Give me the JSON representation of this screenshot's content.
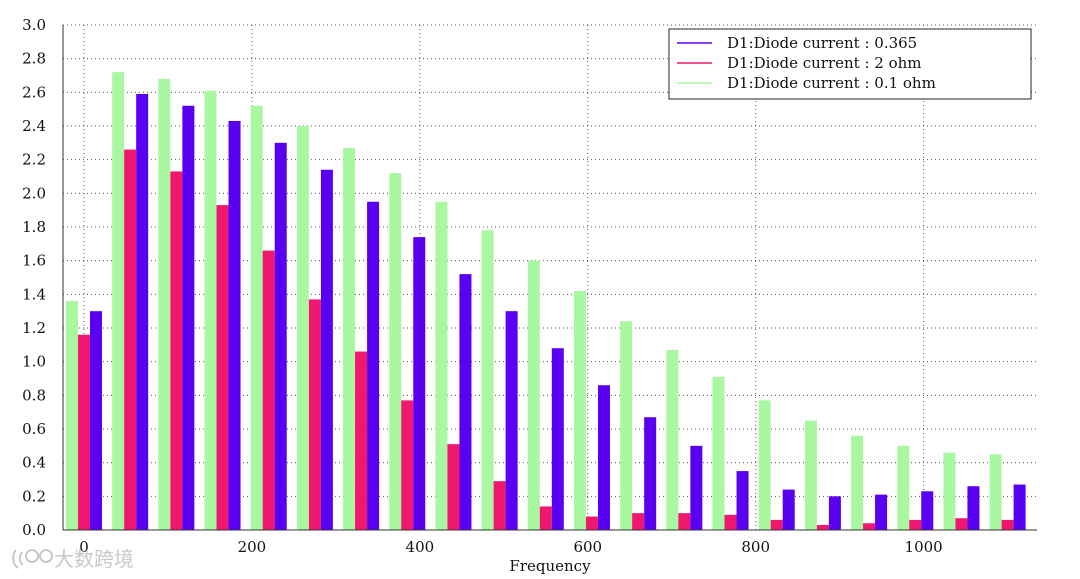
{
  "chart_data": {
    "type": "bar",
    "title": "",
    "xlabel": "Frequency",
    "ylabel": "",
    "xlim": [
      -25,
      1135
    ],
    "ylim": [
      0,
      3.0
    ],
    "x_ticks": [
      "0",
      "200",
      "400",
      "600",
      "800",
      "1000"
    ],
    "y_ticks": [
      "0.0",
      "0.2",
      "0.4",
      "0.6",
      "0.8",
      "1.0",
      "1.2",
      "1.4",
      "1.6",
      "1.8",
      "2.0",
      "2.2",
      "2.4",
      "2.6",
      "2.8",
      "3.0"
    ],
    "grid": true,
    "legend_position": "top-right",
    "x": [
      0,
      55,
      110,
      165,
      220,
      275,
      330,
      385,
      440,
      495,
      550,
      605,
      660,
      715,
      770,
      825,
      880,
      935,
      990,
      1045,
      1100
    ],
    "series": [
      {
        "name": "D1:Diode current : 0.1 ohm",
        "color": "#aaf7a2",
        "values": [
          1.36,
          2.72,
          2.68,
          2.61,
          2.52,
          2.4,
          2.27,
          2.12,
          1.95,
          1.78,
          1.6,
          1.42,
          1.24,
          1.07,
          0.91,
          0.77,
          0.65,
          0.56,
          0.5,
          0.46,
          0.45
        ]
      },
      {
        "name": "D1:Diode current : 2 ohm",
        "color": "#f0176e",
        "values": [
          1.16,
          2.26,
          2.13,
          1.93,
          1.66,
          1.37,
          1.06,
          0.77,
          0.51,
          0.29,
          0.14,
          0.08,
          0.1,
          0.1,
          0.09,
          0.06,
          0.03,
          0.04,
          0.06,
          0.07,
          0.06
        ]
      },
      {
        "name": "D1:Diode current : 0.365",
        "color": "#5a00f2",
        "values": [
          1.3,
          2.59,
          2.52,
          2.43,
          2.3,
          2.14,
          1.95,
          1.74,
          1.52,
          1.3,
          1.08,
          0.86,
          0.67,
          0.5,
          0.35,
          0.24,
          0.2,
          0.21,
          0.23,
          0.26,
          0.27
        ]
      }
    ],
    "legend_order": [
      "D1:Diode current : 0.365",
      "D1:Diode current : 2 ohm",
      "D1:Diode current : 0.1 ohm"
    ]
  },
  "watermark": {
    "text": "大数跨境",
    "icon": "logo-icon"
  }
}
